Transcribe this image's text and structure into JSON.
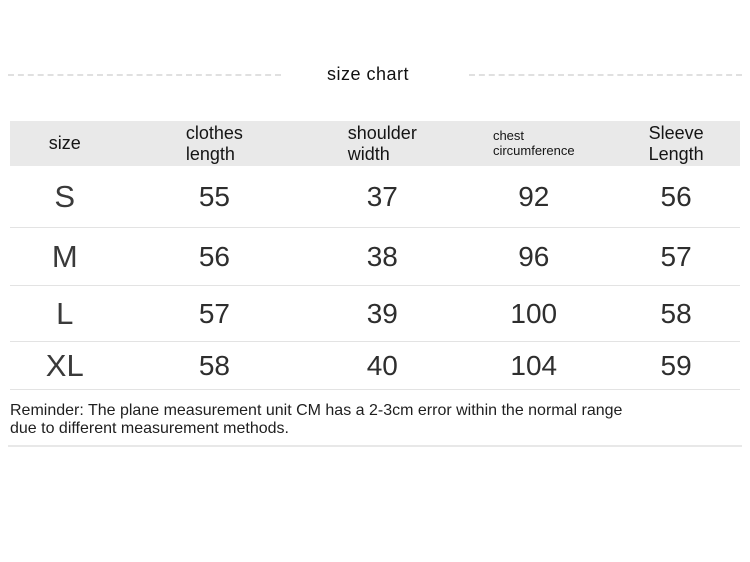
{
  "title": "size chart",
  "chart_data": {
    "type": "table",
    "title": "size chart",
    "unit": "CM",
    "columns": [
      "size",
      "clothes length",
      "shoulder width",
      "chest circumference",
      "Sleeve Length"
    ],
    "rows": [
      [
        "S",
        "55",
        "37",
        "92",
        "56"
      ],
      [
        "M",
        "56",
        "38",
        "96",
        "57"
      ],
      [
        "L",
        "57",
        "39",
        "100",
        "58"
      ],
      [
        "XL",
        "58",
        "40",
        "104",
        "59"
      ]
    ]
  },
  "table": {
    "header": [
      {
        "line1": "size",
        "line2": ""
      },
      {
        "line1": "clothes",
        "line2": "length"
      },
      {
        "line1": "shoulder",
        "line2": "width"
      },
      {
        "line1": "chest",
        "line2": "circumference"
      },
      {
        "line1": "Sleeve",
        "line2": "Length"
      }
    ]
  },
  "reminder": "Reminder: The plane measurement unit CM has a 2-3cm error within the normal range due to different measurement methods.",
  "colors": {
    "header_bg": "#e9e9e9",
    "divider": "#e3e3e3",
    "dash": "#d9d9d9",
    "text": "#2e2e2e"
  }
}
